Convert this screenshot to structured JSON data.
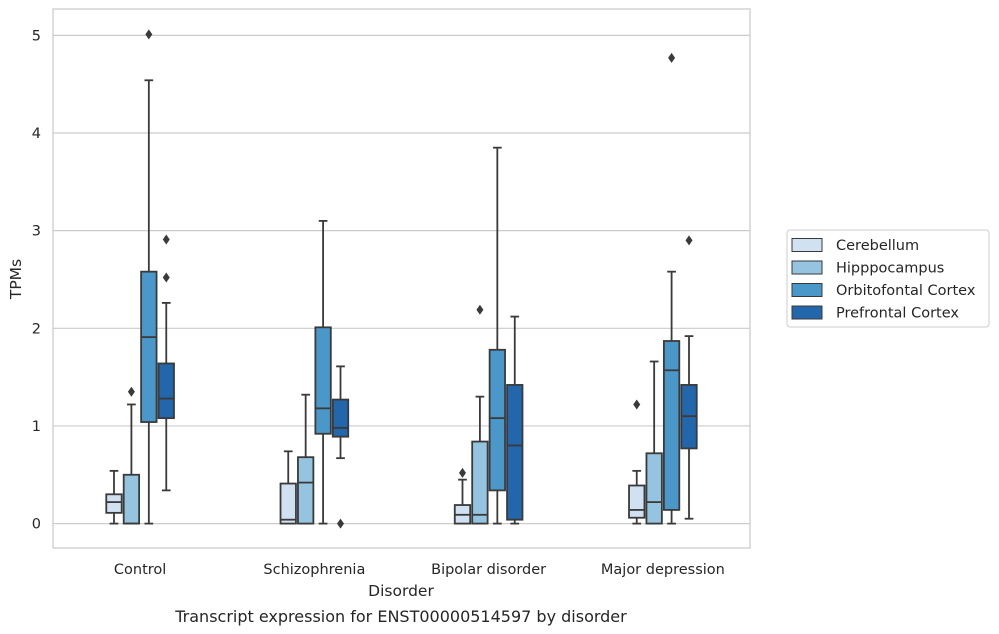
{
  "chart_data": {
    "type": "box",
    "title": "Transcript expression for ENST00000514597 by disorder",
    "xlabel": "Disorder",
    "ylabel": "TPMs",
    "ylim": [
      -0.25,
      5.27
    ],
    "yticks": [
      0,
      1,
      2,
      3,
      4,
      5
    ],
    "grid": true,
    "legend_position": "right",
    "categories": [
      "Control",
      "Schizophrenia",
      "Bipolar disorder",
      "Major depression"
    ],
    "series": [
      {
        "name": "Cerebellum",
        "color": "#d0e1f2",
        "boxes": [
          {
            "whisker_low": 0.0,
            "q1": 0.11,
            "median": 0.22,
            "q3": 0.3,
            "whisker_high": 0.54,
            "outliers": []
          },
          {
            "whisker_low": 0.0,
            "q1": 0.0,
            "median": 0.04,
            "q3": 0.41,
            "whisker_high": 0.74,
            "outliers": []
          },
          {
            "whisker_low": 0.0,
            "q1": 0.0,
            "median": 0.09,
            "q3": 0.19,
            "whisker_high": 0.45,
            "outliers": [
              0.52
            ]
          },
          {
            "whisker_low": 0.0,
            "q1": 0.06,
            "median": 0.14,
            "q3": 0.39,
            "whisker_high": 0.54,
            "outliers": [
              1.22
            ]
          }
        ]
      },
      {
        "name": "Hipppocampus",
        "color": "#94c4df",
        "boxes": [
          {
            "whisker_low": 0.0,
            "q1": 0.0,
            "median": 0.0,
            "q3": 0.5,
            "whisker_high": 1.22,
            "outliers": [
              1.35
            ]
          },
          {
            "whisker_low": 0.0,
            "q1": 0.0,
            "median": 0.42,
            "q3": 0.68,
            "whisker_high": 1.32,
            "outliers": []
          },
          {
            "whisker_low": 0.0,
            "q1": 0.0,
            "median": 0.09,
            "q3": 0.84,
            "whisker_high": 1.3,
            "outliers": [
              2.19
            ]
          },
          {
            "whisker_low": 0.0,
            "q1": 0.0,
            "median": 0.22,
            "q3": 0.72,
            "whisker_high": 1.66,
            "outliers": []
          }
        ]
      },
      {
        "name": "Orbitofontal Cortex",
        "color": "#4a98c9",
        "boxes": [
          {
            "whisker_low": 0.0,
            "q1": 1.04,
            "median": 1.91,
            "q3": 2.58,
            "whisker_high": 4.54,
            "outliers": [
              5.01
            ]
          },
          {
            "whisker_low": 0.0,
            "q1": 0.92,
            "median": 1.18,
            "q3": 2.01,
            "whisker_high": 3.1,
            "outliers": []
          },
          {
            "whisker_low": 0.0,
            "q1": 0.34,
            "median": 1.08,
            "q3": 1.78,
            "whisker_high": 3.85,
            "outliers": []
          },
          {
            "whisker_low": 0.0,
            "q1": 0.14,
            "median": 1.57,
            "q3": 1.87,
            "whisker_high": 2.58,
            "outliers": [
              4.77
            ]
          }
        ]
      },
      {
        "name": "Prefrontal Cortex",
        "color": "#2266ac",
        "boxes": [
          {
            "whisker_low": 0.34,
            "q1": 1.08,
            "median": 1.28,
            "q3": 1.64,
            "whisker_high": 2.26,
            "outliers": [
              2.52,
              2.91
            ]
          },
          {
            "whisker_low": 0.67,
            "q1": 0.89,
            "median": 0.98,
            "q3": 1.27,
            "whisker_high": 1.61,
            "outliers": [
              0.0
            ]
          },
          {
            "whisker_low": 0.0,
            "q1": 0.04,
            "median": 0.8,
            "q3": 1.42,
            "whisker_high": 2.12,
            "outliers": []
          },
          {
            "whisker_low": 0.05,
            "q1": 0.77,
            "median": 1.1,
            "q3": 1.42,
            "whisker_high": 1.92,
            "outliers": [
              2.9
            ]
          }
        ]
      }
    ]
  }
}
